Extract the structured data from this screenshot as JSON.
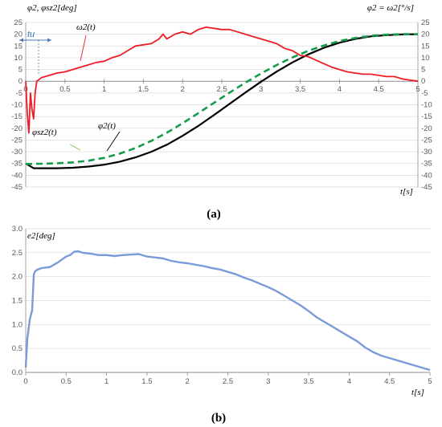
{
  "chart_data": [
    {
      "type": "line",
      "caption": "(a)",
      "ylabel_left": "φ2, φsz2[deg]",
      "ylabel_right": "φ2 = ω2[°/s]",
      "xlabel": "t[s]",
      "xlim": [
        0,
        5
      ],
      "ylim": [
        -45,
        25
      ],
      "xticks": [
        "0",
        "0.5",
        "1",
        "1.5",
        "2",
        "2.5",
        "3",
        "3.5",
        "4",
        "4.5",
        "5"
      ],
      "yticks": [
        "25",
        "20",
        "15",
        "10",
        "5",
        "0",
        "-5",
        "-10",
        "-15",
        "-20",
        "-25",
        "-30",
        "-35",
        "-40",
        "-45"
      ],
      "grid": true,
      "annotations": [
        "tu"
      ],
      "series": [
        {
          "name": "ω2(t)",
          "color": "#ee1c25",
          "style": "solid",
          "x": [
            0,
            0.02,
            0.04,
            0.06,
            0.08,
            0.1,
            0.12,
            0.14,
            0.16,
            0.18,
            0.2,
            0.3,
            0.4,
            0.5,
            0.6,
            0.7,
            0.8,
            0.9,
            1.0,
            1.1,
            1.2,
            1.3,
            1.4,
            1.5,
            1.6,
            1.7,
            1.75,
            1.8,
            1.9,
            2.0,
            2.1,
            2.2,
            2.3,
            2.4,
            2.5,
            2.6,
            2.7,
            2.8,
            2.9,
            3.0,
            3.1,
            3.2,
            3.3,
            3.4,
            3.5,
            3.6,
            3.7,
            3.8,
            3.9,
            4.0,
            4.1,
            4.2,
            4.3,
            4.4,
            4.5,
            4.6,
            4.7,
            4.8,
            4.9,
            5.0
          ],
          "y": [
            0,
            -14,
            -22,
            -5,
            -12,
            -16,
            -5,
            0,
            0.5,
            1,
            1.5,
            2.5,
            3.5,
            4,
            5,
            6,
            7,
            8,
            8.5,
            10,
            11,
            13,
            15,
            15.5,
            16,
            18,
            20,
            18,
            20,
            21,
            20,
            22,
            23,
            22.5,
            22,
            22,
            21,
            20,
            19,
            18,
            17,
            16,
            14,
            13,
            11,
            10.5,
            9,
            7.5,
            6,
            5,
            4,
            3.5,
            3,
            3,
            2.5,
            2,
            2,
            1,
            0.5,
            0
          ]
        },
        {
          "name": "φ2(t)",
          "color": "#000000",
          "style": "solid",
          "x": [
            0,
            0.1,
            0.2,
            0.4,
            0.6,
            0.8,
            1.0,
            1.2,
            1.4,
            1.6,
            1.8,
            2.0,
            2.2,
            2.4,
            2.6,
            2.8,
            3.0,
            3.2,
            3.4,
            3.6,
            3.8,
            4.0,
            4.2,
            4.4,
            4.6,
            4.8,
            5.0
          ],
          "y": [
            -35,
            -37,
            -37,
            -37,
            -36.8,
            -36.3,
            -35.5,
            -34.2,
            -32.4,
            -30,
            -27,
            -23.2,
            -19,
            -14.4,
            -9.6,
            -4.8,
            -0.2,
            4.1,
            8,
            11.4,
            14.2,
            16.4,
            18,
            19.1,
            19.6,
            19.9,
            20
          ]
        },
        {
          "name": "φsz2(t)",
          "color": "#159c4a",
          "style": "dashed",
          "x": [
            0,
            0.2,
            0.4,
            0.6,
            0.8,
            1.0,
            1.2,
            1.4,
            1.6,
            1.8,
            2.0,
            2.2,
            2.4,
            2.6,
            2.8,
            3.0,
            3.2,
            3.4,
            3.6,
            3.8,
            4.0,
            4.2,
            4.4,
            4.6,
            4.8,
            5.0
          ],
          "y": [
            -35.2,
            -35.1,
            -34.9,
            -34.5,
            -33.8,
            -32.6,
            -30.8,
            -28.4,
            -25.4,
            -21.9,
            -17.9,
            -13.6,
            -9.2,
            -4.8,
            -0.6,
            3.3,
            6.9,
            10.1,
            12.9,
            15.2,
            17.1,
            18.4,
            19.3,
            19.8,
            20,
            20
          ]
        }
      ]
    },
    {
      "type": "line",
      "caption": "(b)",
      "ylabel": "e2[deg]",
      "xlabel": "t[s]",
      "xlim": [
        0,
        5
      ],
      "ylim": [
        0,
        3.0
      ],
      "xticks": [
        "0",
        "0.5",
        "1",
        "1.5",
        "2",
        "2.5",
        "3",
        "3.5",
        "4",
        "4.5",
        "5"
      ],
      "yticks": [
        "3.0",
        "2.5",
        "2.0",
        "1.5",
        "1.0",
        "0.5",
        "0.0"
      ],
      "grid": true,
      "series": [
        {
          "name": "e2",
          "color": "#7a9ad8",
          "style": "solid",
          "x": [
            0,
            0.02,
            0.05,
            0.08,
            0.1,
            0.12,
            0.15,
            0.2,
            0.3,
            0.4,
            0.5,
            0.55,
            0.6,
            0.65,
            0.7,
            0.8,
            0.9,
            1.0,
            1.1,
            1.2,
            1.3,
            1.4,
            1.5,
            1.6,
            1.7,
            1.8,
            1.9,
            2.0,
            2.1,
            2.2,
            2.3,
            2.4,
            2.5,
            2.6,
            2.7,
            2.8,
            2.9,
            3.0,
            3.1,
            3.2,
            3.3,
            3.4,
            3.5,
            3.6,
            3.7,
            3.8,
            3.9,
            4.0,
            4.1,
            4.2,
            4.3,
            4.4,
            4.5,
            4.6,
            4.7,
            4.8,
            4.9,
            5.0
          ],
          "y": [
            0.1,
            0.7,
            1.1,
            1.3,
            2.05,
            2.12,
            2.15,
            2.18,
            2.2,
            2.3,
            2.42,
            2.45,
            2.52,
            2.53,
            2.5,
            2.48,
            2.45,
            2.45,
            2.43,
            2.45,
            2.46,
            2.47,
            2.42,
            2.4,
            2.38,
            2.33,
            2.3,
            2.28,
            2.25,
            2.22,
            2.18,
            2.15,
            2.1,
            2.05,
            1.98,
            1.92,
            1.85,
            1.78,
            1.7,
            1.6,
            1.5,
            1.4,
            1.28,
            1.15,
            1.05,
            0.95,
            0.85,
            0.75,
            0.65,
            0.52,
            0.42,
            0.35,
            0.3,
            0.25,
            0.2,
            0.15,
            0.1,
            0.05
          ]
        }
      ]
    }
  ]
}
